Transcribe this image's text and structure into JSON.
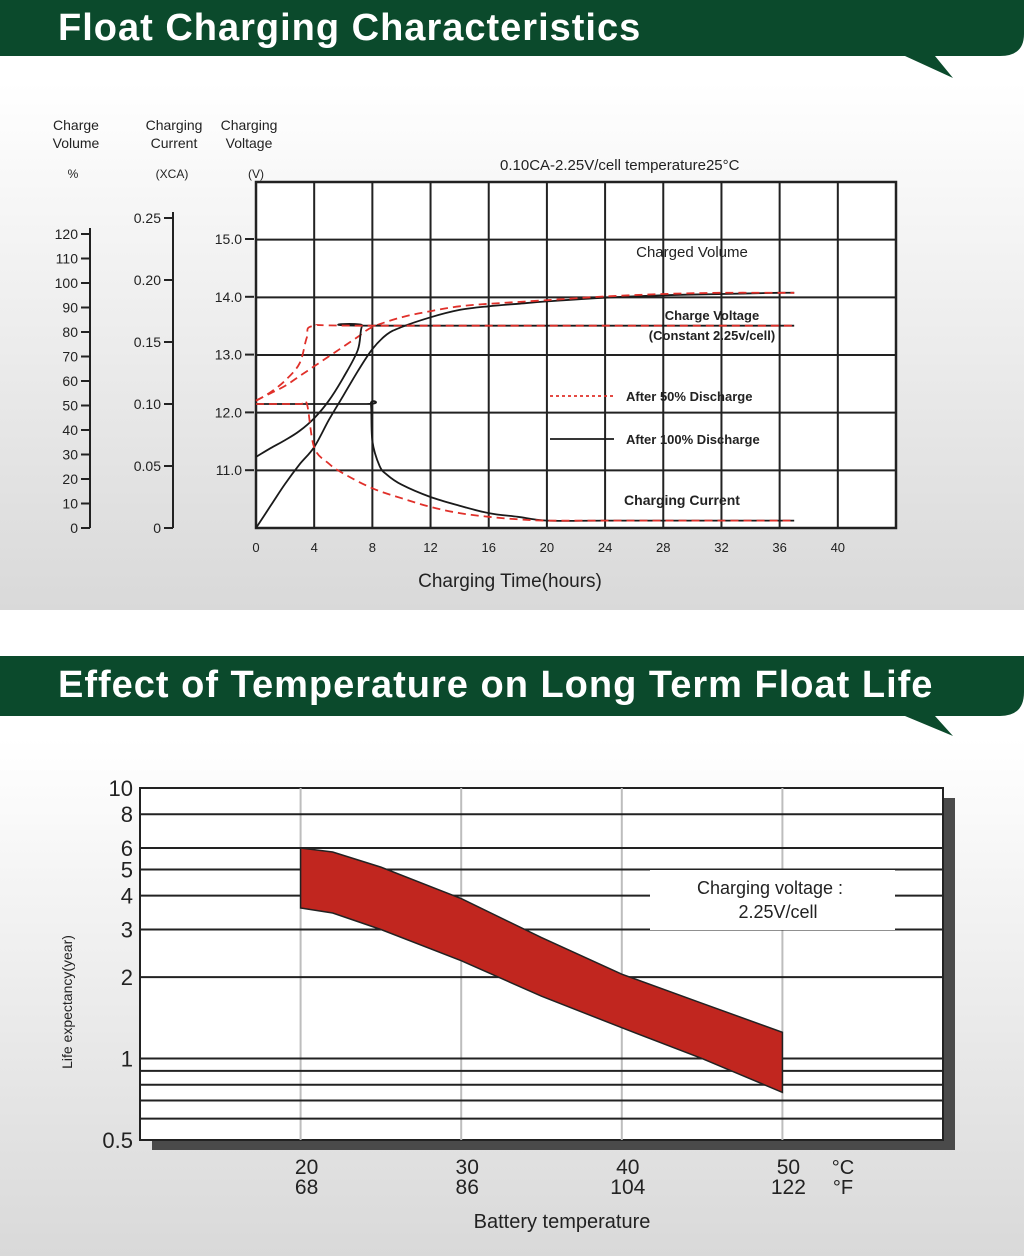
{
  "section1": {
    "title": "Float Charging Characteristics",
    "colors": {
      "banner": "#0b4a2c",
      "solid": "#1a1a1a",
      "dashed": "#e0302a"
    },
    "chart_data": {
      "type": "line",
      "condition": "0.10CA-2.25V/cell   temperature25°C",
      "xlabel": "Charging Time(hours)",
      "xlim": [
        0,
        44
      ],
      "x_ticks": [
        0,
        4,
        8,
        12,
        16,
        20,
        24,
        28,
        32,
        36,
        40
      ],
      "grid": true,
      "axes": [
        {
          "id": "volume",
          "title_line1": "Charge",
          "title_line2": "Volume",
          "unit": "%",
          "range": [
            0,
            120
          ],
          "ticks": [
            0,
            10,
            20,
            30,
            40,
            50,
            60,
            70,
            80,
            90,
            100,
            110,
            120
          ]
        },
        {
          "id": "current",
          "title_line1": "Charging",
          "title_line2": "Current",
          "unit": "(XCA)",
          "range": [
            0,
            0.25
          ],
          "ticks": [
            "0",
            "0.05",
            "0.10",
            "0.15",
            "0.20",
            "0.25"
          ]
        },
        {
          "id": "voltage",
          "title_line1": "Charging",
          "title_line2": "Voltage",
          "unit": "(V)",
          "range": [
            10.0,
            15.0
          ],
          "ticks": [
            "11.0",
            "12.0",
            "13.0",
            "14.0",
            "15.0"
          ]
        }
      ],
      "labels": {
        "charged_volume": "Charged Volume",
        "charge_voltage_1": "Charge Voltage",
        "charge_voltage_2": "(Constant 2.25v/cell)",
        "charging_current": "Charging Current"
      },
      "legend": [
        {
          "label": "After 50% Discharge",
          "style": "dashed"
        },
        {
          "label": "After 100% Discharge",
          "style": "solid"
        }
      ],
      "series": [
        {
          "id": "vol_100",
          "style": "solid",
          "axis": "volume",
          "x": [
            0,
            1,
            2,
            3,
            4,
            5,
            6,
            7,
            8,
            9,
            10,
            12,
            14,
            16,
            18,
            20,
            24,
            28,
            32,
            36,
            37
          ],
          "y": [
            0,
            9,
            18,
            26,
            33,
            44,
            54,
            64,
            73,
            79,
            82,
            86,
            89,
            90.5,
            91.5,
            92.5,
            94,
            95,
            95.5,
            96,
            96
          ]
        },
        {
          "id": "vol_50",
          "style": "dashed",
          "axis": "volume",
          "x": [
            0,
            1,
            2,
            3,
            4,
            5,
            6,
            7,
            8,
            10,
            12,
            14,
            16,
            20,
            24,
            28,
            32,
            36,
            37
          ],
          "y": [
            52,
            55,
            58,
            62,
            66,
            70,
            74,
            78,
            82,
            86,
            88.5,
            90.5,
            91.5,
            93,
            94.5,
            95.5,
            96,
            96,
            96
          ]
        },
        {
          "id": "volt_100",
          "style": "solid",
          "axis": "voltage",
          "x": [
            0,
            1,
            2,
            3,
            4,
            5,
            6,
            7,
            7.3,
            8,
            37
          ],
          "y": [
            11.23,
            11.38,
            11.52,
            11.68,
            11.9,
            12.2,
            12.6,
            13.08,
            13.5,
            13.5,
            13.5
          ]
        },
        {
          "id": "volt_50",
          "style": "dashed",
          "axis": "voltage",
          "x": [
            0,
            1,
            2,
            3,
            3.5,
            4,
            8,
            37
          ],
          "y": [
            12.2,
            12.35,
            12.55,
            12.85,
            13.3,
            13.5,
            13.5,
            13.5
          ]
        },
        {
          "id": "cur_100",
          "style": "solid",
          "axis": "current",
          "x": [
            0,
            7.6,
            7.9,
            8,
            8.5,
            9,
            10,
            12,
            14,
            16,
            18,
            20,
            24,
            28,
            32,
            36,
            37
          ],
          "y": [
            0.1,
            0.1,
            0.1,
            0.07,
            0.05,
            0.043,
            0.035,
            0.025,
            0.018,
            0.012,
            0.009,
            0.006,
            0.006,
            0.006,
            0.006,
            0.006,
            0.006
          ]
        },
        {
          "id": "cur_50",
          "style": "dashed",
          "axis": "current",
          "x": [
            0,
            3,
            3.5,
            4,
            5,
            6,
            8,
            10,
            12,
            14,
            16,
            18,
            20,
            24,
            28,
            32,
            36,
            37
          ],
          "y": [
            0.1,
            0.1,
            0.1,
            0.065,
            0.052,
            0.044,
            0.032,
            0.024,
            0.017,
            0.012,
            0.009,
            0.007,
            0.006,
            0.006,
            0.006,
            0.006,
            0.006,
            0.006
          ]
        }
      ]
    }
  },
  "section2": {
    "title": "Effect of Temperature on Long Term Float Life",
    "colors": {
      "banner": "#0b4a2c",
      "band": "#c1261f"
    },
    "chart_data": {
      "type": "area",
      "ylabel": "Life expectancy(year)",
      "xlabel": "Battery temperature",
      "y_scale": "log",
      "ylim": [
        0.5,
        10
      ],
      "y_ticks": [
        0.5,
        1,
        2,
        3,
        4,
        5,
        6,
        8,
        10
      ],
      "y_tick_labels": [
        "0.5",
        "1",
        "2",
        "3",
        "4",
        "5",
        "6",
        "8",
        "10"
      ],
      "y_minor_lines": [
        0.6,
        0.7,
        0.8,
        0.9
      ],
      "xlim": [
        10,
        60
      ],
      "x_ticks_c": [
        "20",
        "30",
        "40",
        "50"
      ],
      "x_ticks_f": [
        "68",
        "86",
        "104",
        "122"
      ],
      "unit_c": "°C",
      "unit_f": "°F",
      "annotation_1": "Charging voltage :",
      "annotation_2": "2.25V/cell",
      "band": {
        "x": [
          20,
          22,
          25,
          30,
          35,
          40,
          45,
          50
        ],
        "upper": [
          6.0,
          5.8,
          5.1,
          3.9,
          2.8,
          2.05,
          1.6,
          1.25
        ],
        "lower": [
          3.6,
          3.45,
          3.0,
          2.3,
          1.7,
          1.3,
          1.0,
          0.75
        ]
      }
    }
  }
}
